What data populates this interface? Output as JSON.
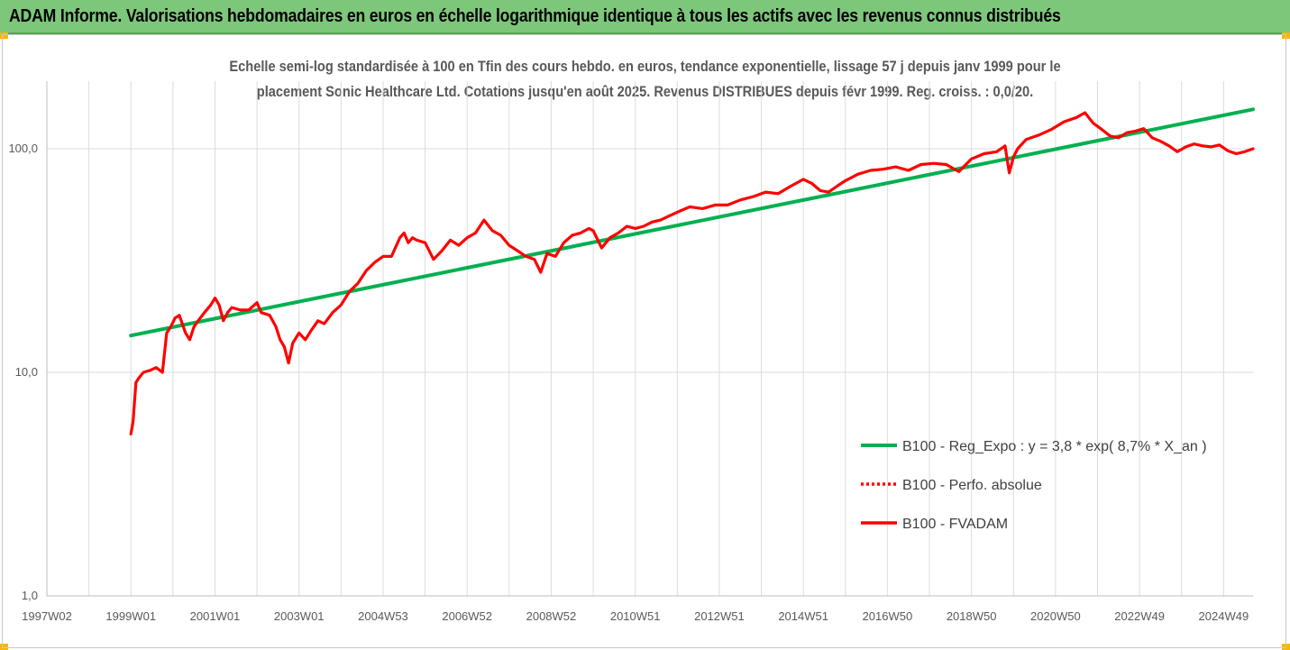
{
  "header": {
    "title": "ADAM Informe. Valorisations hebdomadaires en euros en échelle logarithmique identique à tous les actifs avec les revenus connus distribués",
    "background": "#7dc77a"
  },
  "chart_data": {
    "type": "line",
    "title_line1": "Echelle semi-log standardisée à 100 en Tfin des cours hebdo. en euros, tendance exponentielle, lissage 57 j depuis janv 1999 pour le",
    "title_line2": "placement Sonic Healthcare Ltd. Cotations jusqu'en août 2025. Revenus DISTRIBUES depuis févr 1999. Reg. croiss. : 0,0/20.",
    "y_scale": "log",
    "ylim": [
      1,
      200
    ],
    "xlim": [
      1997.0,
      2025.7
    ],
    "y_ticks": [
      {
        "value": 1,
        "label": "1,0"
      },
      {
        "value": 10,
        "label": "10,0"
      },
      {
        "value": 100,
        "label": "100,0"
      }
    ],
    "x_ticks": [
      {
        "value": 1997.0,
        "label": "1997W02"
      },
      {
        "value": 1999.0,
        "label": "1999W01"
      },
      {
        "value": 2001.0,
        "label": "2001W01"
      },
      {
        "value": 2003.0,
        "label": "2003W01"
      },
      {
        "value": 2005.0,
        "label": "2004W53"
      },
      {
        "value": 2007.0,
        "label": "2006W52"
      },
      {
        "value": 2009.0,
        "label": "2008W52"
      },
      {
        "value": 2011.0,
        "label": "2010W51"
      },
      {
        "value": 2013.0,
        "label": "2012W51"
      },
      {
        "value": 2015.0,
        "label": "2014W51"
      },
      {
        "value": 2017.0,
        "label": "2016W50"
      },
      {
        "value": 2019.0,
        "label": "2018W50"
      },
      {
        "value": 2021.0,
        "label": "2020W50"
      },
      {
        "value": 2023.0,
        "label": "2022W49"
      },
      {
        "value": 2025.0,
        "label": "2024W49"
      }
    ],
    "grid_x": true,
    "legend_position": "center-right",
    "series": [
      {
        "name": "B100 - Reg_Expo : y = 3,8 * exp( 8,7% *  X_an )",
        "color": "#00b050",
        "style": "solid",
        "x": [
          1999.0,
          2025.7
        ],
        "y": [
          14.6,
          150
        ]
      },
      {
        "name": "B100 - Perfo. absolue",
        "color": "#ff0000",
        "style": "dotted",
        "x": [],
        "y": []
      },
      {
        "name": "B100 - FVADAM",
        "color": "#ff0000",
        "style": "solid",
        "x": [
          1999.0,
          1999.05,
          1999.12,
          1999.2,
          1999.3,
          1999.45,
          1999.6,
          1999.75,
          1999.85,
          1999.95,
          2000.05,
          2000.15,
          2000.3,
          2000.4,
          2000.5,
          2000.6,
          2000.75,
          2000.9,
          2001.0,
          2001.1,
          2001.2,
          2001.3,
          2001.4,
          2001.6,
          2001.8,
          2002.0,
          2002.1,
          2002.3,
          2002.45,
          2002.55,
          2002.65,
          2002.75,
          2002.85,
          2003.0,
          2003.15,
          2003.3,
          2003.45,
          2003.6,
          2003.8,
          2004.0,
          2004.2,
          2004.4,
          2004.6,
          2004.8,
          2005.0,
          2005.2,
          2005.4,
          2005.5,
          2005.6,
          2005.7,
          2005.8,
          2006.0,
          2006.2,
          2006.4,
          2006.6,
          2006.8,
          2007.0,
          2007.2,
          2007.4,
          2007.6,
          2007.8,
          2008.0,
          2008.2,
          2008.4,
          2008.6,
          2008.75,
          2008.9,
          2009.1,
          2009.3,
          2009.5,
          2009.7,
          2009.9,
          2010.0,
          2010.2,
          2010.4,
          2010.6,
          2010.8,
          2011.0,
          2011.2,
          2011.4,
          2011.6,
          2011.8,
          2012.0,
          2012.3,
          2012.6,
          2012.9,
          2013.2,
          2013.5,
          2013.8,
          2014.1,
          2014.4,
          2014.7,
          2015.0,
          2015.2,
          2015.4,
          2015.6,
          2015.8,
          2016.0,
          2016.3,
          2016.6,
          2016.9,
          2017.2,
          2017.5,
          2017.8,
          2018.1,
          2018.4,
          2018.7,
          2019.0,
          2019.3,
          2019.6,
          2019.8,
          2019.9,
          2020.0,
          2020.1,
          2020.3,
          2020.6,
          2020.9,
          2021.2,
          2021.5,
          2021.7,
          2021.9,
          2022.1,
          2022.3,
          2022.5,
          2022.7,
          2022.9,
          2023.1,
          2023.3,
          2023.5,
          2023.7,
          2023.9,
          2024.1,
          2024.3,
          2024.5,
          2024.7,
          2024.9,
          2025.1,
          2025.3,
          2025.5,
          2025.7
        ],
        "y": [
          5.3,
          6.0,
          9.0,
          9.5,
          10.0,
          10.2,
          10.5,
          10.0,
          15.0,
          16.0,
          17.5,
          18.0,
          15.0,
          14.0,
          16.0,
          17.0,
          18.5,
          20.0,
          21.5,
          20.0,
          17.0,
          18.5,
          19.5,
          19.0,
          19.0,
          20.5,
          18.5,
          18.0,
          16.0,
          14.0,
          13.0,
          11.0,
          13.5,
          15.0,
          14.0,
          15.5,
          17.0,
          16.5,
          18.5,
          20.0,
          23.0,
          25.0,
          28.5,
          31.0,
          33.0,
          33.0,
          40.0,
          42.0,
          38.0,
          40.0,
          39.0,
          38.0,
          32.0,
          35.0,
          39.0,
          37.0,
          40.0,
          42.0,
          48.0,
          43.0,
          41.0,
          37.0,
          35.0,
          33.0,
          32.0,
          28.0,
          34.0,
          33.0,
          38.0,
          41.0,
          42.0,
          44.0,
          43.0,
          36.0,
          40.0,
          42.0,
          45.0,
          44.0,
          45.0,
          47.0,
          48.0,
          50.0,
          52.0,
          55.0,
          54.0,
          56.0,
          56.0,
          59.0,
          61.0,
          64.0,
          63.0,
          68.0,
          73.0,
          70.0,
          65.0,
          64.0,
          68.0,
          72.0,
          77.0,
          80.0,
          81.0,
          83.0,
          80.0,
          85.0,
          86.0,
          85.0,
          79.0,
          90.0,
          95.0,
          97.0,
          103.0,
          78.0,
          92.0,
          100.0,
          110.0,
          115.0,
          122.0,
          132.0,
          138.0,
          145.0,
          130.0,
          122.0,
          114.0,
          112.0,
          118.0,
          120.0,
          123.0,
          112.0,
          108.0,
          103.0,
          97.0,
          102.0,
          105.0,
          103.0,
          102.0,
          104.0,
          98.0,
          95.0,
          97.0,
          100.0
        ]
      }
    ]
  }
}
